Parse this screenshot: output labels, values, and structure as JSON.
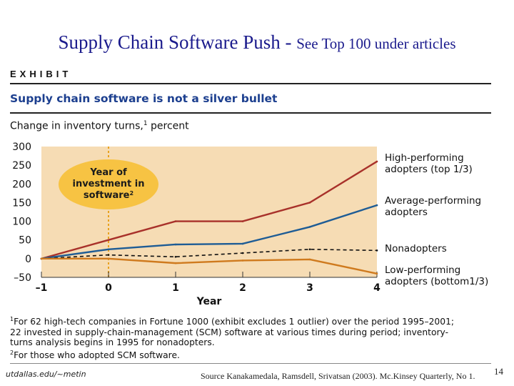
{
  "slide": {
    "title_main": "Supply Chain Software Push -",
    "title_sub": "See Top 100 under articles",
    "exhibit_label": "EXHIBIT",
    "footer_left": "utdallas.edu/~metin",
    "footer_source": "Source Kanakamedala,  Ramsdell, Srivatsan (2003).  Mc.Kinsey Quarterly, No 1.",
    "page_number": "14"
  },
  "chart_data": {
    "type": "line",
    "title": "Supply chain software is not a silver bullet",
    "ylabel": "Change in inventory turns,",
    "ylabel_note": "1",
    "ylabel_unit": "percent",
    "xlabel": "Year",
    "x": [
      -1,
      0,
      1,
      2,
      3,
      4
    ],
    "x_tick_labels": [
      "–1",
      "0",
      "1",
      "2",
      "3",
      "4"
    ],
    "y_ticks": [
      300,
      250,
      200,
      150,
      100,
      50,
      0,
      -50
    ],
    "y_tick_labels": [
      "300",
      "250",
      "200",
      "150",
      "100",
      "50",
      "0",
      "–50"
    ],
    "ylim": [
      -50,
      300
    ],
    "xlim": [
      -1,
      4
    ],
    "grid": false,
    "callout": {
      "lines": [
        "Year of",
        "investment in",
        "software"
      ],
      "note": "2",
      "x": 0
    },
    "series": [
      {
        "name": "High-performing adopters (top 1/3)",
        "label_lines": [
          "High-performing",
          "adopters (top 1/3)"
        ],
        "color": "#a8312a",
        "dashed": false,
        "values": [
          0,
          50,
          100,
          100,
          150,
          260
        ]
      },
      {
        "name": "Average-performing adopters",
        "label_lines": [
          "Average-performing",
          "adopters"
        ],
        "color": "#1e5c95",
        "dashed": false,
        "values": [
          0,
          25,
          38,
          40,
          85,
          143
        ]
      },
      {
        "name": "Nonadopters",
        "label_lines": [
          "Nonadopters"
        ],
        "color": "#111111",
        "dashed": true,
        "values": [
          0,
          10,
          5,
          15,
          25,
          22
        ]
      },
      {
        "name": "Low-performing adopters (bottom 1/3)",
        "label_lines": [
          "Low-performing",
          "adopters (bottom1/3)"
        ],
        "color": "#cf7a1e",
        "dashed": false,
        "values": [
          0,
          0,
          -12,
          -5,
          -2,
          -40
        ]
      }
    ]
  },
  "footnotes": [
    {
      "mark": "1",
      "lines": [
        "For 62 high-tech companies in Fortune 1000 (exhibit excludes 1 outlier) over the period 1995–2001;",
        "22 invested in supply-chain-management (SCM) software at various times during period; inventory-",
        "turns analysis begins in 1995 for nonadopters."
      ]
    },
    {
      "mark": "2",
      "lines": [
        "For those who adopted SCM software."
      ]
    }
  ],
  "colors": {
    "title": "#1a1a8c",
    "chart_title": "#1c3f8f",
    "plot_bg": "#f6dcb4",
    "callout_bg": "#f7c343"
  }
}
